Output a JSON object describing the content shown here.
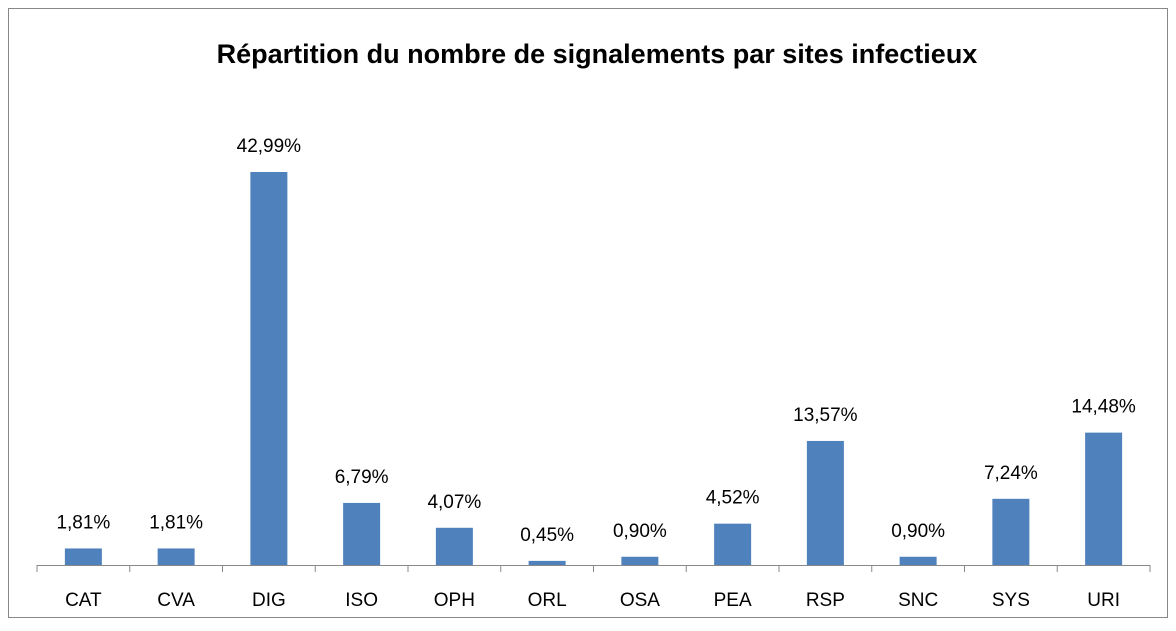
{
  "chart_data": {
    "type": "bar",
    "title": "Répartition du nombre de signalements par sites infectieux",
    "categories": [
      "CAT",
      "CVA",
      "DIG",
      "ISO",
      "OPH",
      "ORL",
      "OSA",
      "PEA",
      "RSP",
      "SNC",
      "SYS",
      "URI"
    ],
    "values": [
      1.81,
      1.81,
      42.99,
      6.79,
      4.07,
      0.45,
      0.9,
      4.52,
      13.57,
      0.9,
      7.24,
      14.48
    ],
    "value_labels": [
      "1,81%",
      "1,81%",
      "42,99%",
      "6,79%",
      "4,07%",
      "0,45%",
      "0,90%",
      "4,52%",
      "13,57%",
      "0,90%",
      "7,24%",
      "14,48%"
    ],
    "color": "#4f81bd"
  }
}
